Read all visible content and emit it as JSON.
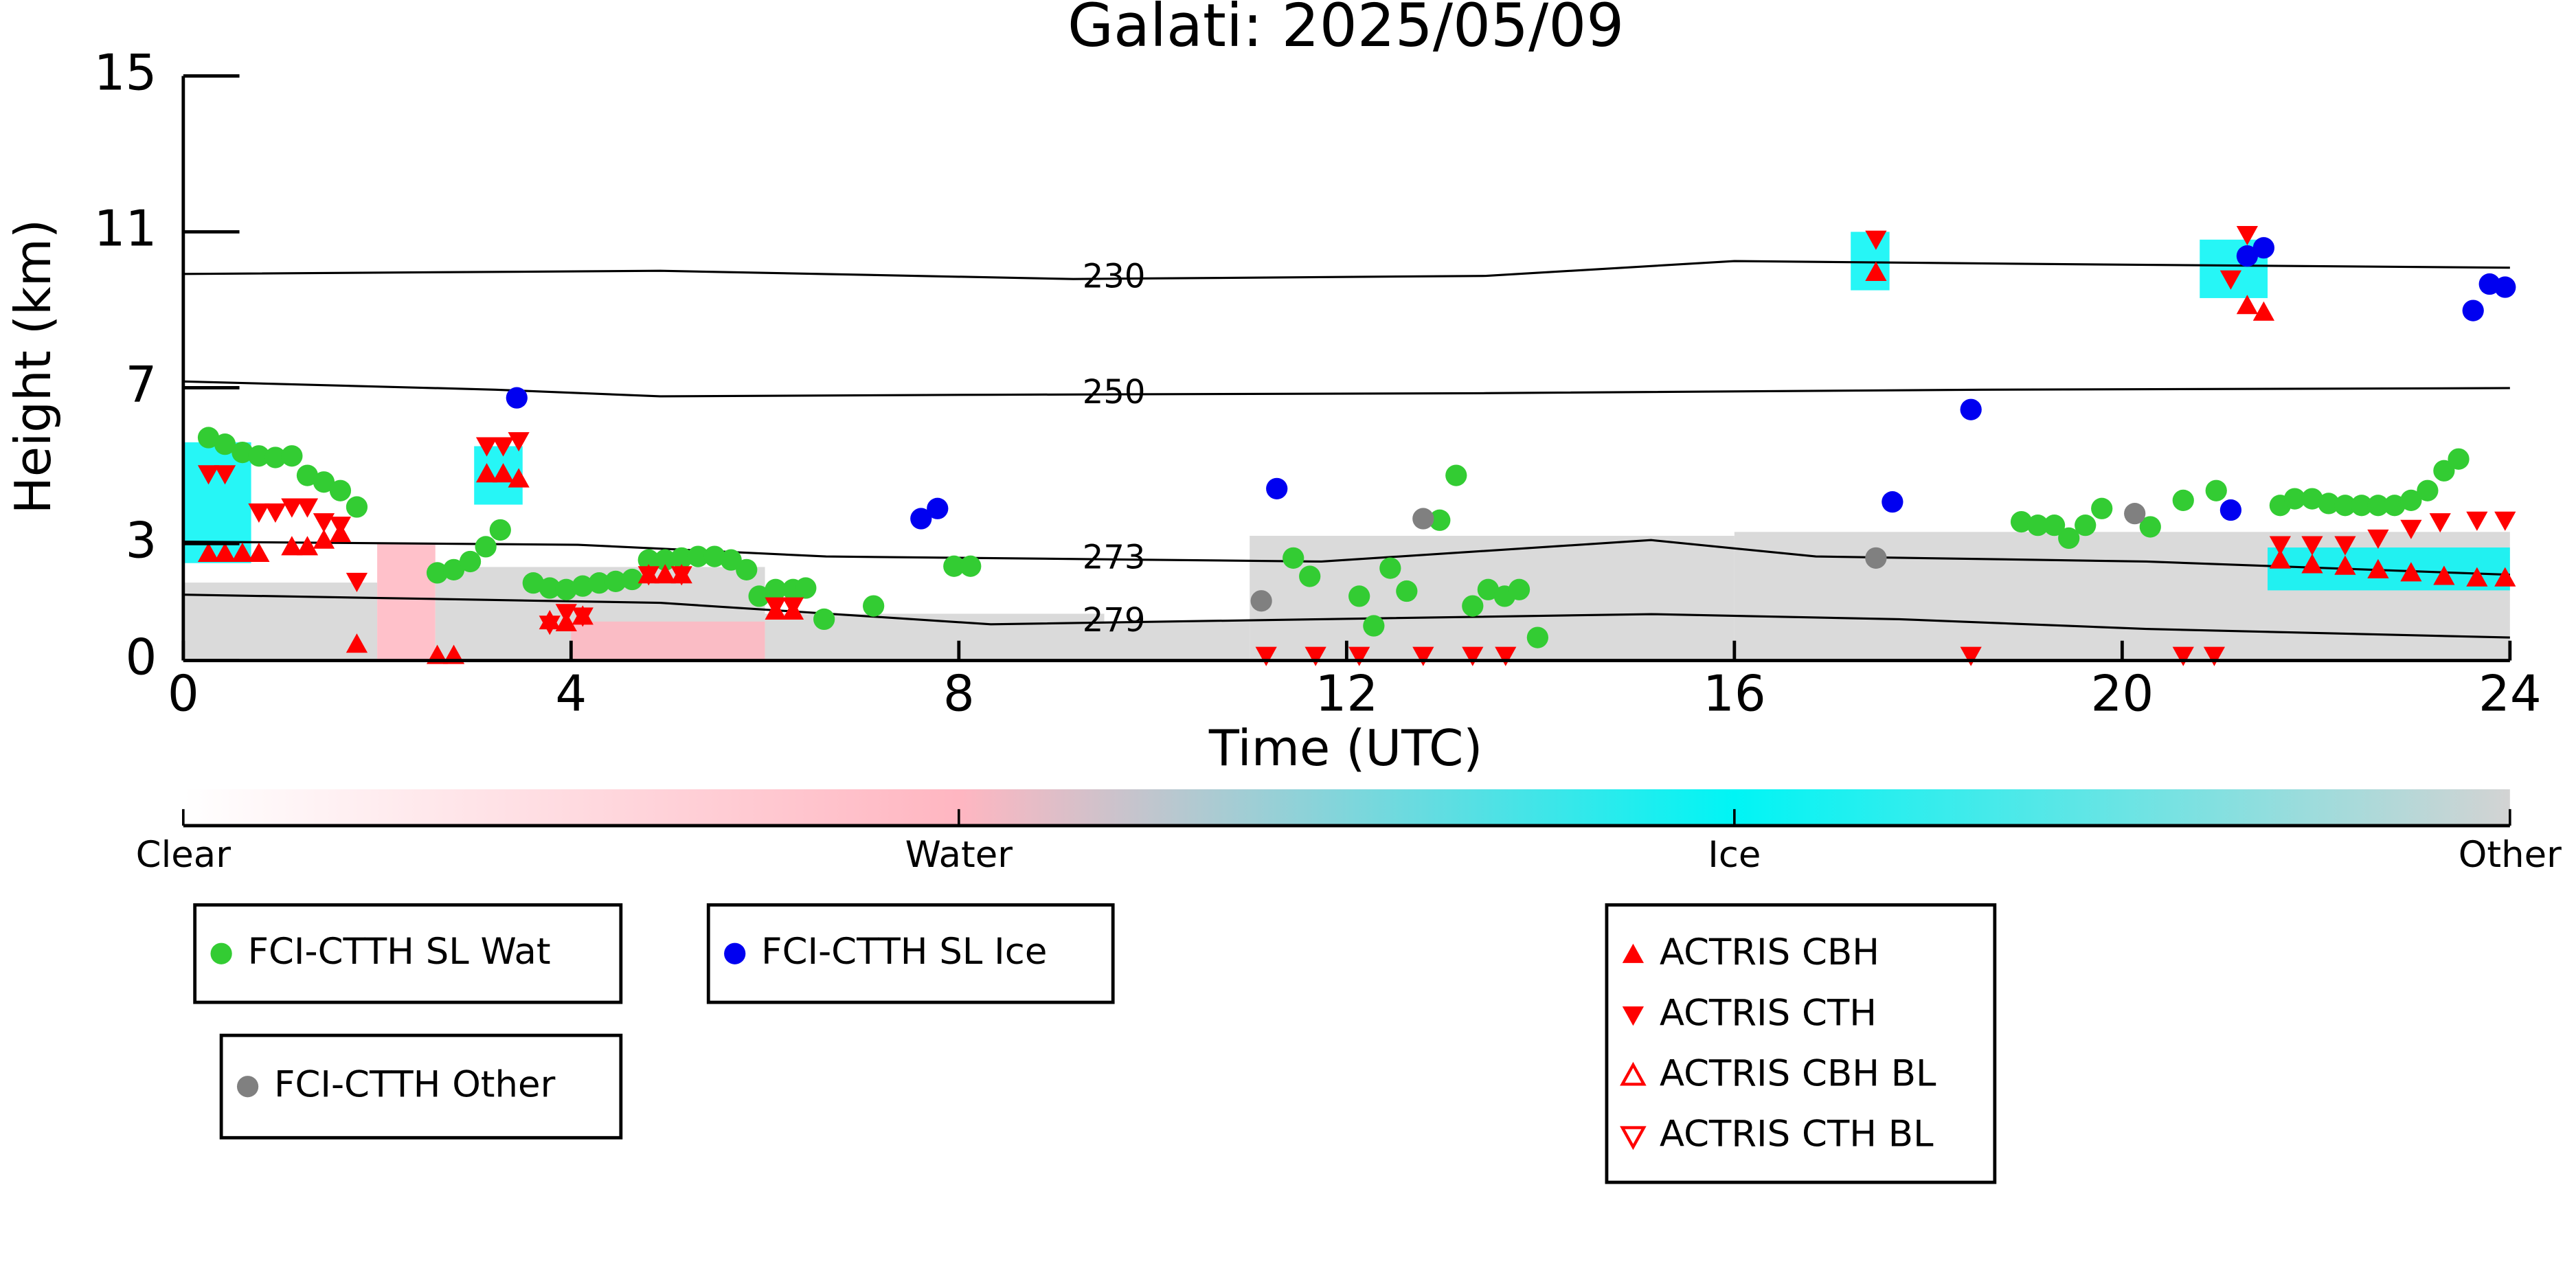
{
  "chart_data": {
    "type": "scatter",
    "title": "Galati: 2025/05/09",
    "x_label": "Time (UTC)",
    "y_label": "Height (km)",
    "xlim": [
      0,
      24
    ],
    "xticks": [
      0,
      4,
      8,
      12,
      16,
      20,
      24
    ],
    "ylim": [
      0,
      15
    ],
    "yticks": [
      0,
      3,
      7,
      11,
      15
    ],
    "colorbar": {
      "labels": [
        "Clear",
        "Water",
        "Ice",
        "Other"
      ],
      "colors": [
        "#ffffff",
        "#ffb6c1",
        "#00f5f5",
        "#d3d3d3"
      ]
    },
    "cloud_field": [
      {
        "x": [
          0,
          2
        ],
        "y": [
          0,
          2.0
        ],
        "class": 3
      },
      {
        "x": [
          2,
          2.6
        ],
        "y": [
          0,
          3.0
        ],
        "class": 1
      },
      {
        "x": [
          2.6,
          6
        ],
        "y": [
          0,
          2.4
        ],
        "class": 3
      },
      {
        "x": [
          4,
          6
        ],
        "y": [
          0,
          1.0
        ],
        "class": 1
      },
      {
        "x": [
          6,
          9.5
        ],
        "y": [
          0,
          1.2
        ],
        "class": 3
      },
      {
        "x": [
          9.5,
          11
        ],
        "y": [
          0,
          1.0
        ],
        "class": 3
      },
      {
        "x": [
          11,
          16
        ],
        "y": [
          0,
          3.2
        ],
        "class": 3
      },
      {
        "x": [
          16,
          24
        ],
        "y": [
          0,
          3.3
        ],
        "class": 3
      },
      {
        "x": [
          0,
          0.7
        ],
        "y": [
          2.5,
          5.6
        ],
        "class": 2
      },
      {
        "x": [
          3.0,
          3.5
        ],
        "y": [
          4.0,
          5.5
        ],
        "class": 2
      },
      {
        "x": [
          17.2,
          17.6
        ],
        "y": [
          9.5,
          11.0
        ],
        "class": 2
      },
      {
        "x": [
          20.8,
          21.5
        ],
        "y": [
          9.3,
          10.8
        ],
        "class": 2
      },
      {
        "x": [
          21.5,
          24
        ],
        "y": [
          1.8,
          2.9
        ],
        "class": 2
      }
    ],
    "contours": [
      {
        "label": 230,
        "x": [
          0,
          4.92,
          9.18,
          13.44,
          16.0,
          19.4,
          24
        ],
        "y": [
          9.92,
          10.0,
          9.79,
          9.87,
          10.25,
          10.17,
          10.08
        ]
      },
      {
        "label": 250,
        "x": [
          0,
          3.22,
          4.92,
          8.33,
          13.44,
          18.55,
          24
        ],
        "y": [
          7.16,
          6.95,
          6.78,
          6.82,
          6.86,
          6.95,
          6.99
        ]
      },
      {
        "label": 273,
        "x": [
          0,
          4.07,
          6.63,
          11.74,
          15.14,
          16.84,
          20.25,
          24
        ],
        "y": [
          3.05,
          2.97,
          2.67,
          2.54,
          3.09,
          2.67,
          2.54,
          2.2
        ]
      },
      {
        "label": 279,
        "x": [
          0,
          4.92,
          8.33,
          11.74,
          15.14,
          17.7,
          20.25,
          24
        ],
        "y": [
          1.69,
          1.48,
          0.93,
          1.06,
          1.19,
          1.06,
          0.81,
          0.59
        ]
      }
    ],
    "series": [
      {
        "name": "FCI-CTTH SL Wat",
        "color": "#33cc33",
        "marker": "circle",
        "x": [
          0.26,
          0.43,
          0.61,
          0.78,
          0.95,
          1.12,
          1.28,
          1.45,
          1.62,
          1.79,
          2.62,
          2.79,
          2.96,
          3.12,
          3.27,
          3.61,
          3.78,
          3.95,
          4.12,
          4.29,
          4.46,
          4.63,
          4.8,
          4.97,
          5.14,
          5.31,
          5.48,
          5.65,
          5.81,
          5.94,
          6.11,
          6.29,
          6.42,
          6.61,
          7.12,
          7.95,
          8.12,
          11.45,
          11.62,
          12.13,
          12.28,
          12.45,
          12.62,
          12.96,
          13.13,
          13.3,
          13.46,
          13.63,
          13.78,
          13.97,
          18.96,
          19.13,
          19.3,
          19.45,
          19.62,
          19.79,
          20.29,
          20.63,
          20.97,
          21.63,
          21.78,
          21.96,
          22.13,
          22.3,
          22.47,
          22.64,
          22.81,
          22.98,
          23.15,
          23.32,
          23.47
        ],
        "y": [
          5.72,
          5.55,
          5.34,
          5.25,
          5.21,
          5.25,
          4.75,
          4.58,
          4.36,
          3.94,
          2.25,
          2.33,
          2.54,
          2.92,
          3.35,
          1.99,
          1.86,
          1.82,
          1.91,
          1.99,
          2.03,
          2.08,
          2.58,
          2.58,
          2.63,
          2.67,
          2.67,
          2.58,
          2.33,
          1.65,
          1.82,
          1.82,
          1.86,
          1.06,
          1.4,
          2.42,
          2.42,
          2.63,
          2.16,
          1.65,
          0.89,
          2.37,
          1.78,
          3.6,
          4.75,
          1.4,
          1.82,
          1.65,
          1.82,
          0.59,
          3.56,
          3.47,
          3.47,
          3.14,
          3.47,
          3.9,
          3.43,
          4.11,
          4.36,
          3.98,
          4.15,
          4.15,
          4.03,
          3.98,
          3.98,
          3.98,
          3.98,
          4.11,
          4.36,
          4.87,
          5.17
        ]
      },
      {
        "name": "FCI-CTTH SL Ice",
        "color": "#0000f0",
        "marker": "circle",
        "x": [
          3.44,
          7.61,
          7.78,
          11.28,
          17.63,
          18.44,
          21.12,
          21.29,
          21.46,
          23.62,
          23.79,
          23.95
        ],
        "y": [
          6.74,
          3.64,
          3.9,
          4.41,
          4.07,
          6.44,
          3.86,
          10.38,
          10.59,
          8.98,
          9.66,
          9.58
        ]
      },
      {
        "name": "FCI-CTTH Other",
        "color": "#808080",
        "marker": "circle",
        "x": [
          11.12,
          12.79,
          17.46,
          20.13
        ],
        "y": [
          1.53,
          3.64,
          2.63,
          3.77
        ]
      },
      {
        "name": "ACTRIS CBH",
        "color": "#ff0000",
        "marker": "triangle-up",
        "x": [
          0.26,
          0.43,
          0.61,
          0.78,
          1.12,
          1.28,
          1.45,
          1.62,
          1.79,
          2.62,
          2.79,
          3.13,
          3.3,
          3.46,
          3.78,
          3.95,
          4.12,
          4.8,
          4.97,
          5.14,
          6.11,
          6.29,
          17.46,
          21.29,
          21.46,
          21.63,
          21.96,
          22.3,
          22.64,
          22.98,
          23.32,
          23.66,
          23.95
        ],
        "y": [
          2.75,
          2.75,
          2.75,
          2.75,
          2.92,
          2.92,
          3.09,
          3.26,
          0.42,
          0.13,
          0.13,
          4.79,
          4.79,
          4.66,
          1.02,
          0.97,
          1.14,
          2.2,
          2.2,
          2.2,
          1.27,
          1.27,
          9.96,
          9.11,
          8.94,
          2.58,
          2.46,
          2.42,
          2.33,
          2.25,
          2.16,
          2.12,
          2.12
        ]
      },
      {
        "name": "ACTRIS CTH",
        "color": "#ff0000",
        "marker": "triangle-down",
        "x": [
          0.26,
          0.43,
          0.78,
          0.95,
          1.12,
          1.28,
          1.45,
          1.62,
          1.79,
          3.13,
          3.3,
          3.46,
          3.78,
          3.95,
          4.12,
          4.8,
          5.14,
          6.11,
          6.29,
          11.17,
          11.68,
          12.13,
          12.79,
          13.3,
          13.64,
          17.46,
          18.44,
          20.63,
          20.95,
          21.12,
          21.29,
          21.63,
          21.96,
          22.3,
          22.64,
          22.98,
          23.28,
          23.66,
          23.95
        ],
        "y": [
          4.79,
          4.79,
          3.81,
          3.81,
          3.94,
          3.94,
          3.56,
          3.47,
          2.03,
          5.51,
          5.51,
          5.64,
          0.93,
          1.23,
          1.14,
          2.2,
          2.2,
          1.4,
          1.4,
          0.13,
          0.13,
          0.13,
          0.13,
          0.13,
          0.13,
          10.81,
          0.13,
          0.13,
          0.13,
          9.79,
          10.93,
          2.97,
          2.97,
          2.97,
          3.14,
          3.39,
          3.56,
          3.6,
          3.6
        ]
      },
      {
        "name": "ACTRIS CBH BL",
        "color": "#ff0000",
        "marker": "triangle-up-open",
        "x": [],
        "y": []
      },
      {
        "name": "ACTRIS CTH BL",
        "color": "#ff0000",
        "marker": "triangle-down-open",
        "x": [],
        "y": []
      }
    ]
  }
}
